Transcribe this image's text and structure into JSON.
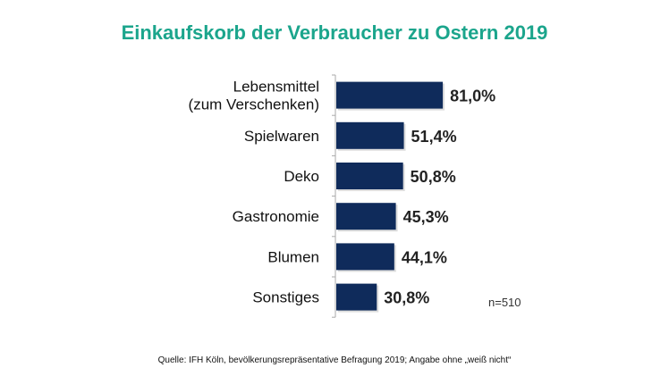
{
  "chart_data": {
    "type": "bar",
    "orientation": "horizontal",
    "title": "Einkaufskorb der Verbraucher zu Ostern 2019",
    "categories": [
      [
        "Lebensmittel",
        "(zum Verschenken)"
      ],
      [
        "Spielwaren"
      ],
      [
        "Deko"
      ],
      [
        "Gastronomie"
      ],
      [
        "Blumen"
      ],
      [
        "Sonstiges"
      ]
    ],
    "values": [
      81.0,
      51.4,
      50.8,
      45.3,
      44.1,
      30.8
    ],
    "value_labels": [
      "81,0%",
      "51,4%",
      "50,8%",
      "45,3%",
      "44,1%",
      "30,8%"
    ],
    "unit": "%",
    "annotation": "n=510",
    "source": "Quelle:  IFH  Köln,  bevölkerungsrepräsentative Befragung 2019; Angabe ohne „weiß nicht“",
    "grid": false,
    "colors": {
      "title": "#1ba58c",
      "bar": "#0f2b5b"
    }
  }
}
